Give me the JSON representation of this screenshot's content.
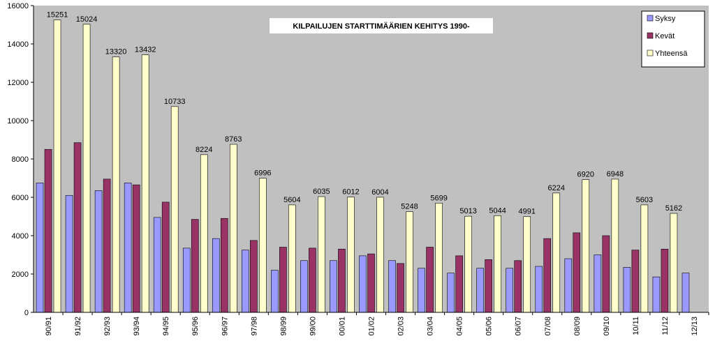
{
  "colors": {
    "plot_background": "#c0c0c0",
    "axis": "#000000",
    "syksy": "#9999ff",
    "kevat": "#993366",
    "yhteensa": "#ffffcc"
  },
  "chart_data": {
    "type": "bar",
    "title": "KILPAILUJEN STARTTIMÄÄRIEN KEHITYS 1990-",
    "categories": [
      "90/91",
      "91/92",
      "92/93",
      "93/94",
      "94/95",
      "95/96",
      "96/97",
      "97/98",
      "98/99",
      "99/00",
      "00/01",
      "01/02",
      "02/03",
      "03/04",
      "04/05",
      "05/06",
      "06/07",
      "07/08",
      "08/09",
      "09/10",
      "10/11",
      "11/12",
      "12/13"
    ],
    "series": [
      {
        "name": "Syksy",
        "values": [
          6750,
          6100,
          6350,
          6750,
          4950,
          3350,
          3850,
          3250,
          2200,
          2700,
          2700,
          2950,
          2700,
          2300,
          2050,
          2300,
          2300,
          2400,
          2800,
          3000,
          2350,
          1850,
          2050
        ]
      },
      {
        "name": "Kevät",
        "values": [
          8500,
          8850,
          6950,
          6650,
          5750,
          4850,
          4900,
          3750,
          3400,
          3350,
          3300,
          3050,
          2550,
          3400,
          2950,
          2750,
          2700,
          3850,
          4150,
          4000,
          3250,
          3300,
          null
        ]
      },
      {
        "name": "Yhteensä",
        "values": [
          15251,
          15024,
          13320,
          13432,
          10733,
          8224,
          8763,
          6996,
          5604,
          6035,
          6012,
          6004,
          5248,
          5699,
          5013,
          5044,
          4991,
          6224,
          6920,
          6948,
          5603,
          5162,
          null
        ],
        "data_labels": [
          "15251",
          "15024",
          "13320",
          "13432",
          "10733",
          "8224",
          "8763",
          "6996",
          "5604",
          "6035",
          "6012",
          "6004",
          "5248",
          "5699",
          "5013",
          "5044",
          "4991",
          "6224",
          "6920",
          "6948",
          "5603",
          "5162",
          ""
        ]
      }
    ],
    "y_ticks": [
      "0",
      "2000",
      "4000",
      "6000",
      "8000",
      "10000",
      "12000",
      "14000",
      "16000"
    ],
    "ylim": [
      0,
      16000
    ],
    "xlabel": "",
    "ylabel": "",
    "grid": false,
    "legend_position": "top-right",
    "x_tick_rotation": "vertical"
  }
}
